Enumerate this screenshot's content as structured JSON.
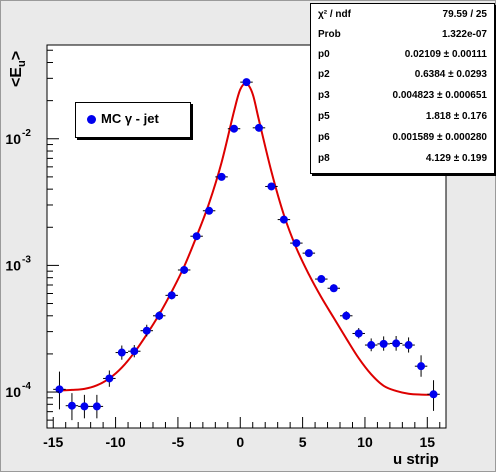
{
  "chart_data": {
    "type": "scatter",
    "title": "",
    "xlabel": "u strip",
    "ylabel": "<E_u>",
    "ylabel_parts": [
      "<E",
      "u",
      ">"
    ],
    "xlim": [
      -15.5,
      16.5
    ],
    "ylim": [
      5.2e-05,
      0.055
    ],
    "y_scale": "log",
    "grid": false,
    "x_ticks": [
      -15,
      -10,
      -5,
      0,
      5,
      10,
      15
    ],
    "x_tick_labels": [
      "-15",
      "-10",
      "-5",
      "0",
      "5",
      "10",
      "15"
    ],
    "y_ticks": [
      0.0001,
      0.001,
      0.01
    ],
    "y_tick_labels": [
      {
        "base": "10",
        "exp": "-4"
      },
      {
        "base": "10",
        "exp": "-3"
      },
      {
        "base": "10",
        "exp": "-2"
      }
    ],
    "legend": {
      "entry": "MC γ - jet",
      "placement": "top-left"
    },
    "series": [
      {
        "name": "MC γ - jet",
        "kind": "points",
        "color": "#0000ee",
        "x": [
          -14.5,
          -13.5,
          -12.5,
          -11.5,
          -10.5,
          -9.5,
          -8.5,
          -7.5,
          -6.5,
          -5.5,
          -4.5,
          -3.5,
          -2.5,
          -1.5,
          -0.5,
          0.5,
          1.5,
          2.5,
          3.5,
          4.5,
          5.5,
          6.5,
          7.5,
          8.5,
          9.5,
          10.5,
          11.5,
          12.5,
          13.5,
          14.5,
          15.5
        ],
        "y": [
          0.000105,
          7.8e-05,
          7.7e-05,
          7.7e-05,
          0.000128,
          0.000205,
          0.00021,
          0.000305,
          0.0004,
          0.00058,
          0.00092,
          0.0017,
          0.0027,
          0.005,
          0.012,
          0.028,
          0.0122,
          0.0042,
          0.0023,
          0.0015,
          0.00125,
          0.00078,
          0.00066,
          0.0004,
          0.00029,
          0.000235,
          0.00024,
          0.000242,
          0.000235,
          0.00016,
          9.6e-05
        ],
        "y_err_low": [
          3.2e-05,
          1.8e-05,
          1.5e-05,
          1.5e-05,
          1.8e-05,
          2.5e-05,
          2.2e-05,
          3e-05,
          3e-05,
          4e-05,
          6e-05,
          0.0001,
          0.00015,
          0.0002,
          0.0004,
          0.0007,
          0.0005,
          0.0002,
          0.0001,
          8e-05,
          6e-05,
          4e-05,
          4e-05,
          3e-05,
          2.5e-05,
          2.5e-05,
          2.8e-05,
          3e-05,
          3e-05,
          2.8e-05,
          2.5e-05
        ],
        "y_err_high": [
          4e-05,
          2e-05,
          1.8e-05,
          1.8e-05,
          2e-05,
          2.8e-05,
          2.5e-05,
          3.5e-05,
          3.5e-05,
          4.5e-05,
          7e-05,
          0.00012,
          0.00018,
          0.00025,
          0.0005,
          0.0008,
          0.0006,
          0.00025,
          0.00012,
          0.0001,
          7e-05,
          5e-05,
          5e-05,
          3.5e-05,
          3e-05,
          3e-05,
          3.5e-05,
          3.5e-05,
          3.5e-05,
          3.5e-05,
          2.8e-05
        ]
      },
      {
        "name": "",
        "kind": "fit",
        "color": "#dd0000",
        "x": [
          -14.5,
          -13.5,
          -12.5,
          -11.5,
          -10.5,
          -9.5,
          -8.5,
          -7.5,
          -6.5,
          -5.5,
          -4.5,
          -3.5,
          -2.5,
          -1.5,
          -0.5,
          0.0,
          0.5,
          1.0,
          1.5,
          2.5,
          3.5,
          4.5,
          5.5,
          6.5,
          7.5,
          8.5,
          9.5,
          10.5,
          11.5,
          12.5,
          13.5,
          14.5,
          15.5
        ],
        "y": [
          0.000103,
          0.000104,
          0.000106,
          0.000113,
          0.000128,
          0.000156,
          0.000205,
          0.000285,
          0.00041,
          0.00062,
          0.00098,
          0.0017,
          0.0031,
          0.0065,
          0.0165,
          0.0245,
          0.0272,
          0.0225,
          0.014,
          0.0055,
          0.0025,
          0.00137,
          0.00085,
          0.00056,
          0.000385,
          0.000265,
          0.000185,
          0.000138,
          0.000112,
          0.000102,
          9.7e-05,
          9.55e-05,
          9.52e-05
        ]
      }
    ]
  },
  "stats": [
    {
      "name": "χ² / ndf",
      "value": "79.59 / 25"
    },
    {
      "name": "Prob",
      "value": "1.322e-07"
    },
    {
      "name": "p0",
      "value": "0.02109 ± 0.00111"
    },
    {
      "name": "p2",
      "value": "0.6384 ± 0.0293"
    },
    {
      "name": "p3",
      "value": "0.004823 ± 0.000651"
    },
    {
      "name": "p5",
      "value": "1.818 ± 0.176"
    },
    {
      "name": "p6",
      "value": "0.001589 ± 0.000280"
    },
    {
      "name": "p8",
      "value": "4.129 ± 0.199"
    }
  ],
  "colors": {
    "background": "#eaeaea",
    "frame": "#ffffff",
    "points": "#0000ee",
    "fit": "#dd0000"
  }
}
